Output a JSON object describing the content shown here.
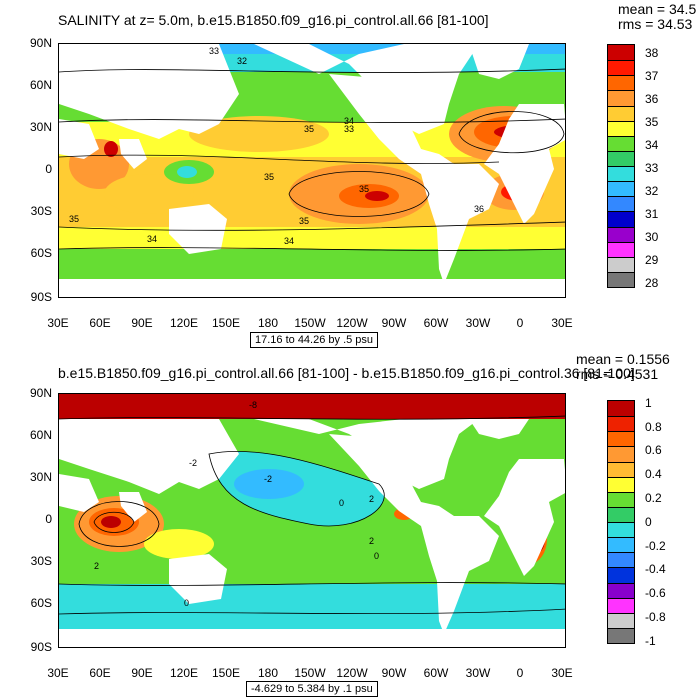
{
  "panel_top": {
    "title": "SALINITY at z=   5.0m, b.e15.B1850.f09_g16.pi_control.all.66 [81-100]",
    "mean": "mean = 34.5",
    "rms": "rms = 34.53",
    "range_label": "17.16 to 44.26 by .5 psu",
    "lat_labels": [
      "90N",
      "60N",
      "30N",
      "0",
      "30S",
      "60S",
      "90S"
    ],
    "lon_labels": [
      "30E",
      "60E",
      "90E",
      "120E",
      "150E",
      "180",
      "150W",
      "120W",
      "90W",
      "60W",
      "30W",
      "0",
      "30E"
    ],
    "colorbar_labels": [
      "38",
      "37",
      "36",
      "35",
      "34",
      "33",
      "32",
      "31",
      "30",
      "29",
      "28"
    ],
    "colorbar_colors": [
      "#cc0000",
      "#ff1a00",
      "#ff6600",
      "#ff9933",
      "#ffcc33",
      "#ffff33",
      "#66dd33",
      "#33cc66",
      "#33dddd",
      "#33bbff",
      "#3388ff",
      "#0000cc",
      "#9900cc",
      "#ff33ff",
      "#cccccc",
      "#777777"
    ],
    "contour_labels": [
      "33",
      "32",
      "35",
      "34",
      "33",
      "35",
      "35",
      "35",
      "35",
      "34",
      "34",
      "36"
    ]
  },
  "panel_bottom": {
    "title": "b.e15.B1850.f09_g16.pi_control.all.66 [81-100] - b.e15.B1850.f09_g16.pi_control.36 [81-100]",
    "mean": "mean = 0.1556",
    "rms": "rms = 0.4531",
    "range_label": "-4.629 to 5.384 by .1 psu",
    "lat_labels": [
      "90N",
      "60N",
      "30N",
      "0",
      "30S",
      "60S",
      "90S"
    ],
    "lon_labels": [
      "30E",
      "60E",
      "90E",
      "120E",
      "150E",
      "180",
      "150W",
      "120W",
      "90W",
      "60W",
      "30W",
      "0",
      "30E"
    ],
    "colorbar_labels": [
      "1",
      "0.8",
      "0.6",
      "0.4",
      "0.2",
      "0",
      "-0.2",
      "-0.4",
      "-0.6",
      "-0.8",
      "-1"
    ],
    "colorbar_colors": [
      "#bb0000",
      "#ee2200",
      "#ff6600",
      "#ff9933",
      "#ffbb33",
      "#ffff33",
      "#66dd33",
      "#33cc66",
      "#33dddd",
      "#33bbff",
      "#3388ff",
      "#0033dd",
      "#8800cc",
      "#ff33ff",
      "#cccccc",
      "#777777"
    ],
    "contour_labels": [
      "-8",
      "-2",
      "-2",
      "0",
      "2",
      "2",
      "2",
      "0",
      "0"
    ]
  }
}
